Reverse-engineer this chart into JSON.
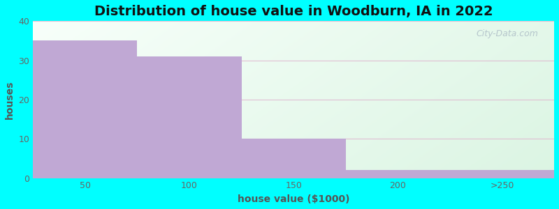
{
  "title": "Distribution of house value in Woodburn, IA in 2022",
  "xlabel": "house value ($1000)",
  "ylabel": "houses",
  "categories": [
    "50",
    "100",
    "150",
    "200",
    ">250"
  ],
  "values": [
    35,
    31,
    10,
    2,
    2
  ],
  "bar_color": "#c0a8d4",
  "ylim": [
    0,
    40
  ],
  "yticks": [
    0,
    10,
    20,
    30,
    40
  ],
  "xlim": [
    0,
    5
  ],
  "background_outer": "#00ffff",
  "background_top_color": "#f8fffc",
  "background_bottom_color": "#e0f4e8",
  "gridline_color": "#e0b8d0",
  "title_fontsize": 14,
  "label_fontsize": 10,
  "tick_fontsize": 9,
  "title_color": "#111111",
  "label_color": "#555555",
  "tick_color": "#666666",
  "watermark_text": "City-Data.com",
  "watermark_color": "#b0c0c8"
}
